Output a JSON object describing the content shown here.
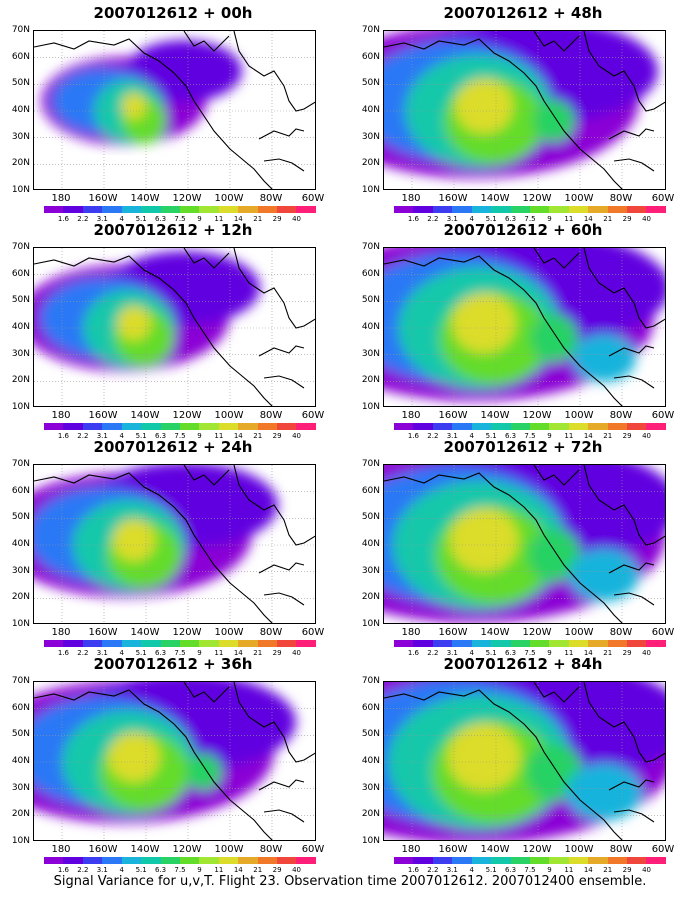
{
  "panels": [
    {
      "title": "2007012612 + 00h",
      "spread": 0.15
    },
    {
      "title": "2007012612 + 48h",
      "spread": 0.7
    },
    {
      "title": "2007012612 + 12h",
      "spread": 0.3
    },
    {
      "title": "2007012612 + 60h",
      "spread": 0.8
    },
    {
      "title": "2007012612 + 24h",
      "spread": 0.45
    },
    {
      "title": "2007012612 + 72h",
      "spread": 0.88
    },
    {
      "title": "2007012612 + 36h",
      "spread": 0.6
    },
    {
      "title": "2007012612 + 84h",
      "spread": 0.95
    }
  ],
  "lat_labels": [
    "70N",
    "60N",
    "50N",
    "40N",
    "30N",
    "20N",
    "10N"
  ],
  "lon_labels": [
    "180",
    "160W",
    "140W",
    "120W",
    "100W",
    "80W",
    "60W"
  ],
  "colorbar": {
    "labels": [
      "1.6",
      "2.2",
      "3.1",
      "4",
      "5.1",
      "6.3",
      "7.5",
      "9",
      "11",
      "14",
      "21",
      "29",
      "40"
    ],
    "colors": [
      "#8a00d6",
      "#6000e0",
      "#3c3cf0",
      "#2a78f5",
      "#19b4dc",
      "#12c8aa",
      "#28d264",
      "#64dc2a",
      "#a0e632",
      "#dcdc2a",
      "#e6aa28",
      "#f07828",
      "#f0463c",
      "#ff1e78"
    ]
  },
  "caption": "Signal Variance for u,v,T. Flight 23. Observation time 2007012612. 2007012400 ensemble."
}
